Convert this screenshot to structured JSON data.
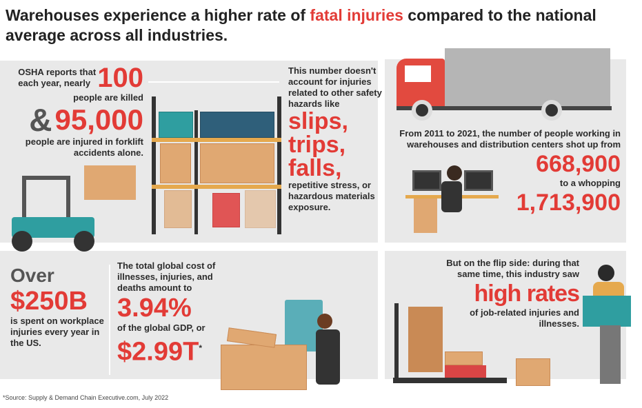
{
  "title": {
    "before": "Warehouses experience a higher rate of ",
    "highlight": "fatal injuries",
    "after": " compared to the national average across all industries."
  },
  "forklift": {
    "intro": "OSHA reports that each year, nearly",
    "killed_number": "100",
    "killed_text": "people are killed",
    "ampersand": "&",
    "injured_number": "95,000",
    "injured_text": "people are injured in forklift accidents alone."
  },
  "hazards": {
    "intro": "This number doesn't account for injuries related to other safety hazards like",
    "big": [
      "slips,",
      "trips,",
      "falls,"
    ],
    "outro": "repetitive stress, or hazardous materials exposure."
  },
  "workers": {
    "intro": "From 2011 to 2021, the number of people working in warehouses and distribution centers shot up from",
    "from_number": "668,900",
    "middle": "to a whopping",
    "to_number": "1,713,900"
  },
  "cost_us": {
    "over": "Over",
    "amount": "$250B",
    "text": "is spent on workplace injuries every year in the US."
  },
  "cost_global": {
    "intro": "The total global cost of illnesses, injuries, and deaths amount to",
    "percent": "3.94%",
    "middle": "of the global GDP, or",
    "amount": "$2.99T",
    "asterisk": "*"
  },
  "flip": {
    "intro": "But on the flip side: during that same time, this industry saw",
    "big": "high rates",
    "outro": "of job-related injuries and illnesses."
  },
  "source": "*Source: Supply & Demand Chain Executive.com, July 2022",
  "colors": {
    "accent": "#e23b36",
    "panel": "#e9e9e9",
    "text": "#2b2b2b"
  }
}
